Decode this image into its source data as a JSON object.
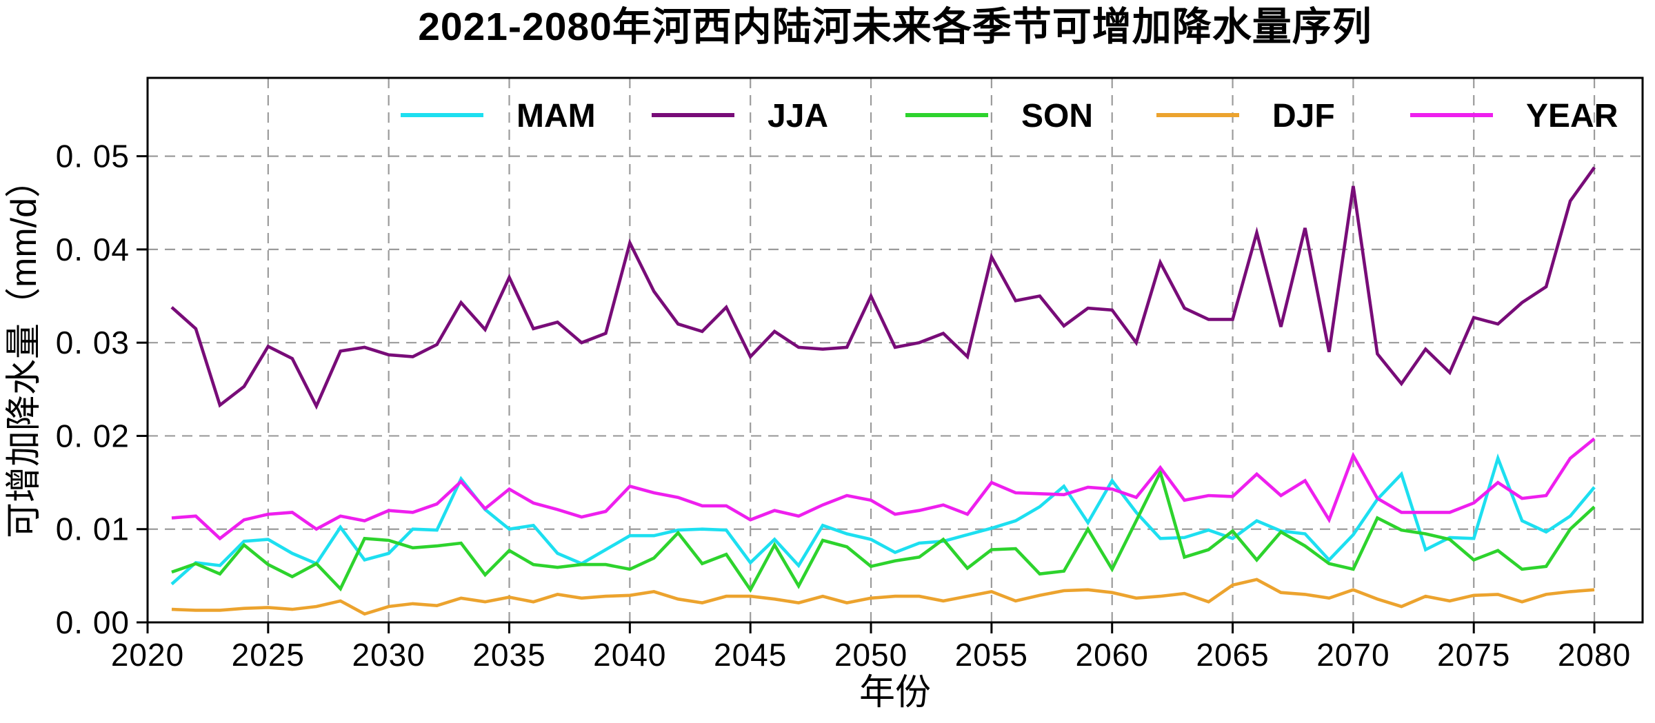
{
  "chart_data": {
    "type": "line",
    "title": "2021-2080年河西内陆河未来各季节可增加降水量序列",
    "xlabel": "年份",
    "ylabel": "可增加降水量（mm/d）",
    "xlim": [
      2020,
      2082
    ],
    "ylim": [
      0,
      0.0584
    ],
    "grid": "dashed-gray-both-axes",
    "legend_position": "top-inside-horizontal",
    "x_ticks": [
      2020,
      2025,
      2030,
      2035,
      2040,
      2045,
      2050,
      2055,
      2060,
      2065,
      2070,
      2075,
      2080
    ],
    "x_tick_labels": [
      "2020",
      "2025",
      "2030",
      "2035",
      "2040",
      "2045",
      "2050",
      "2055",
      "2060",
      "2065",
      "2070",
      "2075",
      "2080"
    ],
    "y_ticks": [
      0,
      0.01,
      0.02,
      0.03,
      0.04,
      0.05
    ],
    "y_tick_labels": [
      "0. 00",
      "0. 01",
      "0. 02",
      "0. 03",
      "0. 04",
      "0. 05"
    ],
    "x": [
      2021,
      2022,
      2023,
      2024,
      2025,
      2026,
      2027,
      2028,
      2029,
      2030,
      2031,
      2032,
      2033,
      2034,
      2035,
      2036,
      2037,
      2038,
      2039,
      2040,
      2041,
      2042,
      2043,
      2044,
      2045,
      2046,
      2047,
      2048,
      2049,
      2050,
      2051,
      2052,
      2053,
      2054,
      2055,
      2056,
      2057,
      2058,
      2059,
      2060,
      2061,
      2062,
      2063,
      2064,
      2065,
      2066,
      2067,
      2068,
      2069,
      2070,
      2071,
      2072,
      2073,
      2074,
      2075,
      2076,
      2077,
      2078,
      2079,
      2080
    ],
    "series": [
      {
        "name": "MAM",
        "color": "#1ddff0",
        "values": [
          0.0041,
          0.0064,
          0.0061,
          0.0087,
          0.0089,
          0.0074,
          0.0063,
          0.0102,
          0.0067,
          0.0074,
          0.01,
          0.0099,
          0.0154,
          0.0121,
          0.01,
          0.0104,
          0.0074,
          0.0063,
          0.0078,
          0.0093,
          0.0093,
          0.0099,
          0.01,
          0.0099,
          0.0064,
          0.0089,
          0.0061,
          0.0104,
          0.0095,
          0.0089,
          0.0075,
          0.0085,
          0.0087,
          0.0094,
          0.0101,
          0.0109,
          0.0124,
          0.0146,
          0.0107,
          0.0152,
          0.0118,
          0.009,
          0.0091,
          0.0099,
          0.009,
          0.0109,
          0.0098,
          0.0095,
          0.0067,
          0.0094,
          0.0132,
          0.0159,
          0.0078,
          0.0091,
          0.009,
          0.0176,
          0.0109,
          0.0097,
          0.0114,
          0.0145
        ]
      },
      {
        "name": "JJA",
        "color": "#780c78",
        "values": [
          0.0338,
          0.0315,
          0.0233,
          0.0253,
          0.0296,
          0.0283,
          0.0232,
          0.0291,
          0.0295,
          0.0287,
          0.0285,
          0.0298,
          0.0343,
          0.0314,
          0.037,
          0.0315,
          0.0322,
          0.03,
          0.031,
          0.0407,
          0.0355,
          0.032,
          0.0312,
          0.0338,
          0.0285,
          0.0312,
          0.0295,
          0.0293,
          0.0295,
          0.035,
          0.0295,
          0.03,
          0.031,
          0.0285,
          0.0392,
          0.0345,
          0.035,
          0.0318,
          0.0337,
          0.0335,
          0.03,
          0.0386,
          0.0337,
          0.0325,
          0.0325,
          0.0418,
          0.0317,
          0.0423,
          0.029,
          0.0468,
          0.0288,
          0.0256,
          0.0293,
          0.0268,
          0.0327,
          0.032,
          0.0343,
          0.036,
          0.0452,
          0.0488
        ]
      },
      {
        "name": "SON",
        "color": "#2dd32d",
        "values": [
          0.0054,
          0.0063,
          0.0052,
          0.0083,
          0.0062,
          0.0049,
          0.0063,
          0.0036,
          0.009,
          0.0088,
          0.008,
          0.0082,
          0.0085,
          0.0051,
          0.0077,
          0.0062,
          0.0059,
          0.0062,
          0.0062,
          0.0057,
          0.0069,
          0.0096,
          0.0063,
          0.0073,
          0.0035,
          0.0083,
          0.0039,
          0.0088,
          0.0081,
          0.006,
          0.0066,
          0.007,
          0.0089,
          0.0058,
          0.0078,
          0.0079,
          0.0052,
          0.0055,
          0.01,
          0.0057,
          0.0109,
          0.0161,
          0.007,
          0.0078,
          0.0098,
          0.0067,
          0.0097,
          0.0082,
          0.0063,
          0.0057,
          0.0112,
          0.0099,
          0.0095,
          0.0089,
          0.0067,
          0.0077,
          0.0057,
          0.006,
          0.01,
          0.0124
        ]
      },
      {
        "name": "DJF",
        "color": "#eca32e",
        "values": [
          0.0014,
          0.0013,
          0.0013,
          0.0015,
          0.0016,
          0.0014,
          0.0017,
          0.0023,
          0.0009,
          0.0017,
          0.002,
          0.0018,
          0.0026,
          0.0022,
          0.0027,
          0.0022,
          0.003,
          0.0026,
          0.0028,
          0.0029,
          0.0033,
          0.0025,
          0.0021,
          0.0028,
          0.0028,
          0.0025,
          0.0021,
          0.0028,
          0.0021,
          0.0026,
          0.0028,
          0.0028,
          0.0023,
          0.0028,
          0.0033,
          0.0023,
          0.0029,
          0.0034,
          0.0035,
          0.0032,
          0.0026,
          0.0028,
          0.0031,
          0.0022,
          0.004,
          0.0046,
          0.0032,
          0.003,
          0.0026,
          0.0035,
          0.0025,
          0.0017,
          0.0028,
          0.0023,
          0.0029,
          0.003,
          0.0022,
          0.003,
          0.0033,
          0.0035
        ]
      },
      {
        "name": "YEAR",
        "color": "#ee1fee",
        "values": [
          0.0112,
          0.0114,
          0.009,
          0.011,
          0.0116,
          0.0118,
          0.01,
          0.0114,
          0.0109,
          0.012,
          0.0118,
          0.0127,
          0.0151,
          0.0122,
          0.0143,
          0.0128,
          0.0121,
          0.0113,
          0.0119,
          0.0146,
          0.0139,
          0.0134,
          0.0125,
          0.0125,
          0.011,
          0.012,
          0.0114,
          0.0126,
          0.0136,
          0.0131,
          0.0116,
          0.012,
          0.0126,
          0.0116,
          0.015,
          0.0139,
          0.0138,
          0.0137,
          0.0145,
          0.0143,
          0.0134,
          0.0166,
          0.0131,
          0.0136,
          0.0135,
          0.0159,
          0.0136,
          0.0152,
          0.011,
          0.0179,
          0.0133,
          0.0118,
          0.0118,
          0.0118,
          0.0128,
          0.015,
          0.0133,
          0.0136,
          0.0176,
          0.0197
        ]
      }
    ]
  }
}
